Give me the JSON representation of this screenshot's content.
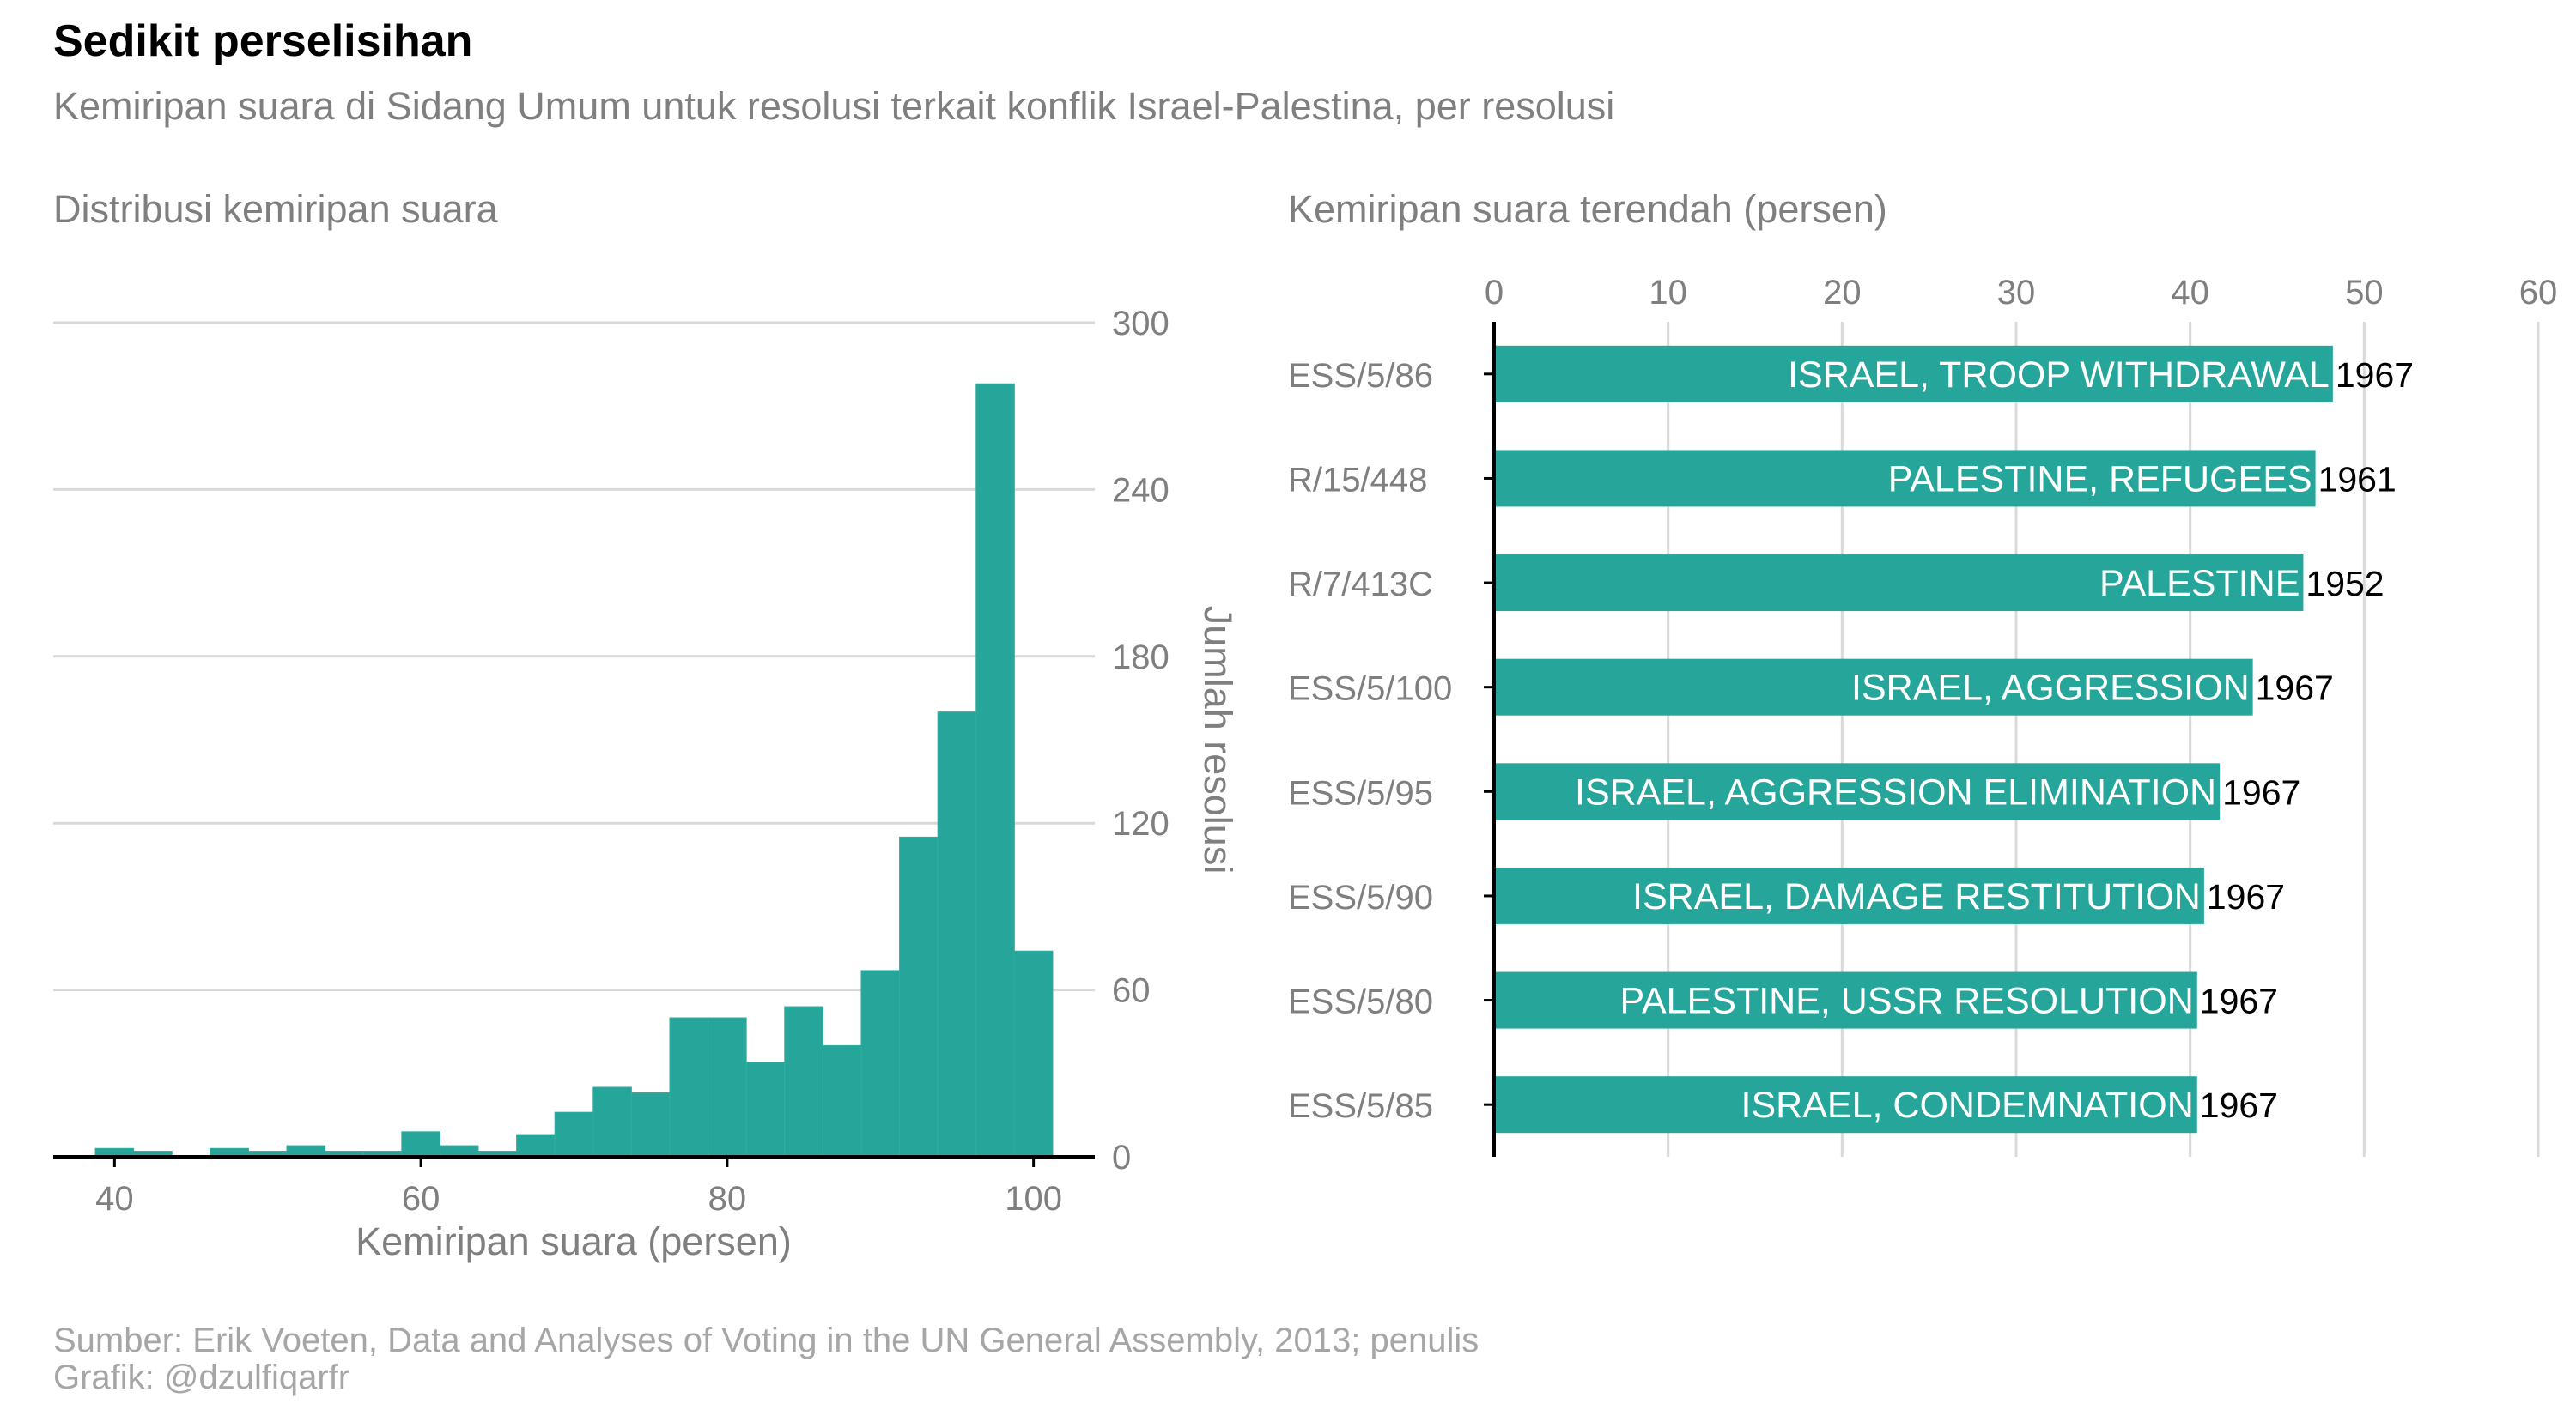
{
  "header": {
    "title": "Sedikit perselisihan",
    "subtitle": "Kemiripan suara di Sidang Umum untuk resolusi terkait konflik Israel-Palestina, per resolusi"
  },
  "panels": {
    "histogram_title": "Distribusi kemiripan suara",
    "bar_title": "Kemiripan suara terendah (persen)"
  },
  "footer": {
    "source": "Sumber: Erik Voeten, Data and Analyses of Voting in the UN General Assembly, 2013; penulis",
    "credit": "Grafik: @dzulfiqarfr"
  },
  "colors": {
    "bar": "#26a69a",
    "grid": "#d9d9d9",
    "axis": "#000000",
    "tick": "#7f7f7f"
  },
  "chart_data": [
    {
      "type": "bar",
      "subtype": "histogram",
      "title": "Distribusi kemiripan suara",
      "xlabel": "Kemiripan suara (persen)",
      "ylabel": "Jumlah resolusi",
      "xlim": [
        36,
        104
      ],
      "ylim": [
        0,
        300
      ],
      "xticks": [
        40,
        60,
        80,
        100
      ],
      "yticks": [
        0,
        60,
        120,
        180,
        240,
        300
      ],
      "y_axis_position": "right",
      "grid": "horizontal",
      "bin_width": 2.5,
      "bins": [
        {
          "start": 38.75,
          "count": 3
        },
        {
          "start": 41.25,
          "count": 2
        },
        {
          "start": 43.75,
          "count": 0
        },
        {
          "start": 46.25,
          "count": 3
        },
        {
          "start": 48.75,
          "count": 2
        },
        {
          "start": 51.25,
          "count": 4
        },
        {
          "start": 53.75,
          "count": 2
        },
        {
          "start": 56.25,
          "count": 2
        },
        {
          "start": 58.75,
          "count": 9
        },
        {
          "start": 61.25,
          "count": 4
        },
        {
          "start": 63.75,
          "count": 2
        },
        {
          "start": 66.25,
          "count": 8
        },
        {
          "start": 68.75,
          "count": 16
        },
        {
          "start": 71.25,
          "count": 25
        },
        {
          "start": 73.75,
          "count": 23
        },
        {
          "start": 76.25,
          "count": 50
        },
        {
          "start": 78.75,
          "count": 50
        },
        {
          "start": 81.25,
          "count": 34
        },
        {
          "start": 83.75,
          "count": 54
        },
        {
          "start": 86.25,
          "count": 40
        },
        {
          "start": 88.75,
          "count": 67
        },
        {
          "start": 91.25,
          "count": 115
        },
        {
          "start": 93.75,
          "count": 160
        },
        {
          "start": 96.25,
          "count": 278
        },
        {
          "start": 98.75,
          "count": 74
        }
      ]
    },
    {
      "type": "bar",
      "orientation": "horizontal",
      "title": "Kemiripan suara terendah (persen)",
      "xlim": [
        0,
        60
      ],
      "xticks": [
        0,
        10,
        20,
        30,
        40,
        50,
        60
      ],
      "x_axis_position": "top",
      "grid": "vertical",
      "categories": [
        "ESS/5/86",
        "R/15/448",
        "R/7/413C",
        "ESS/5/100",
        "ESS/5/95",
        "ESS/5/90",
        "ESS/5/80",
        "ESS/5/85"
      ],
      "values": [
        48.2,
        47.2,
        46.5,
        43.6,
        41.7,
        40.8,
        40.4,
        40.4
      ],
      "bar_labels": [
        "ISRAEL, TROOP WITHDRAWAL",
        "PALESTINE, REFUGEES",
        "PALESTINE",
        "ISRAEL, AGGRESSION",
        "ISRAEL, AGGRESSION ELIMINATION",
        "ISRAEL, DAMAGE RESTITUTION",
        "PALESTINE, USSR RESOLUTION",
        "ISRAEL, CONDEMNATION"
      ],
      "years": [
        "1967",
        "1961",
        "1952",
        "1967",
        "1967",
        "1967",
        "1967",
        "1967"
      ]
    }
  ]
}
